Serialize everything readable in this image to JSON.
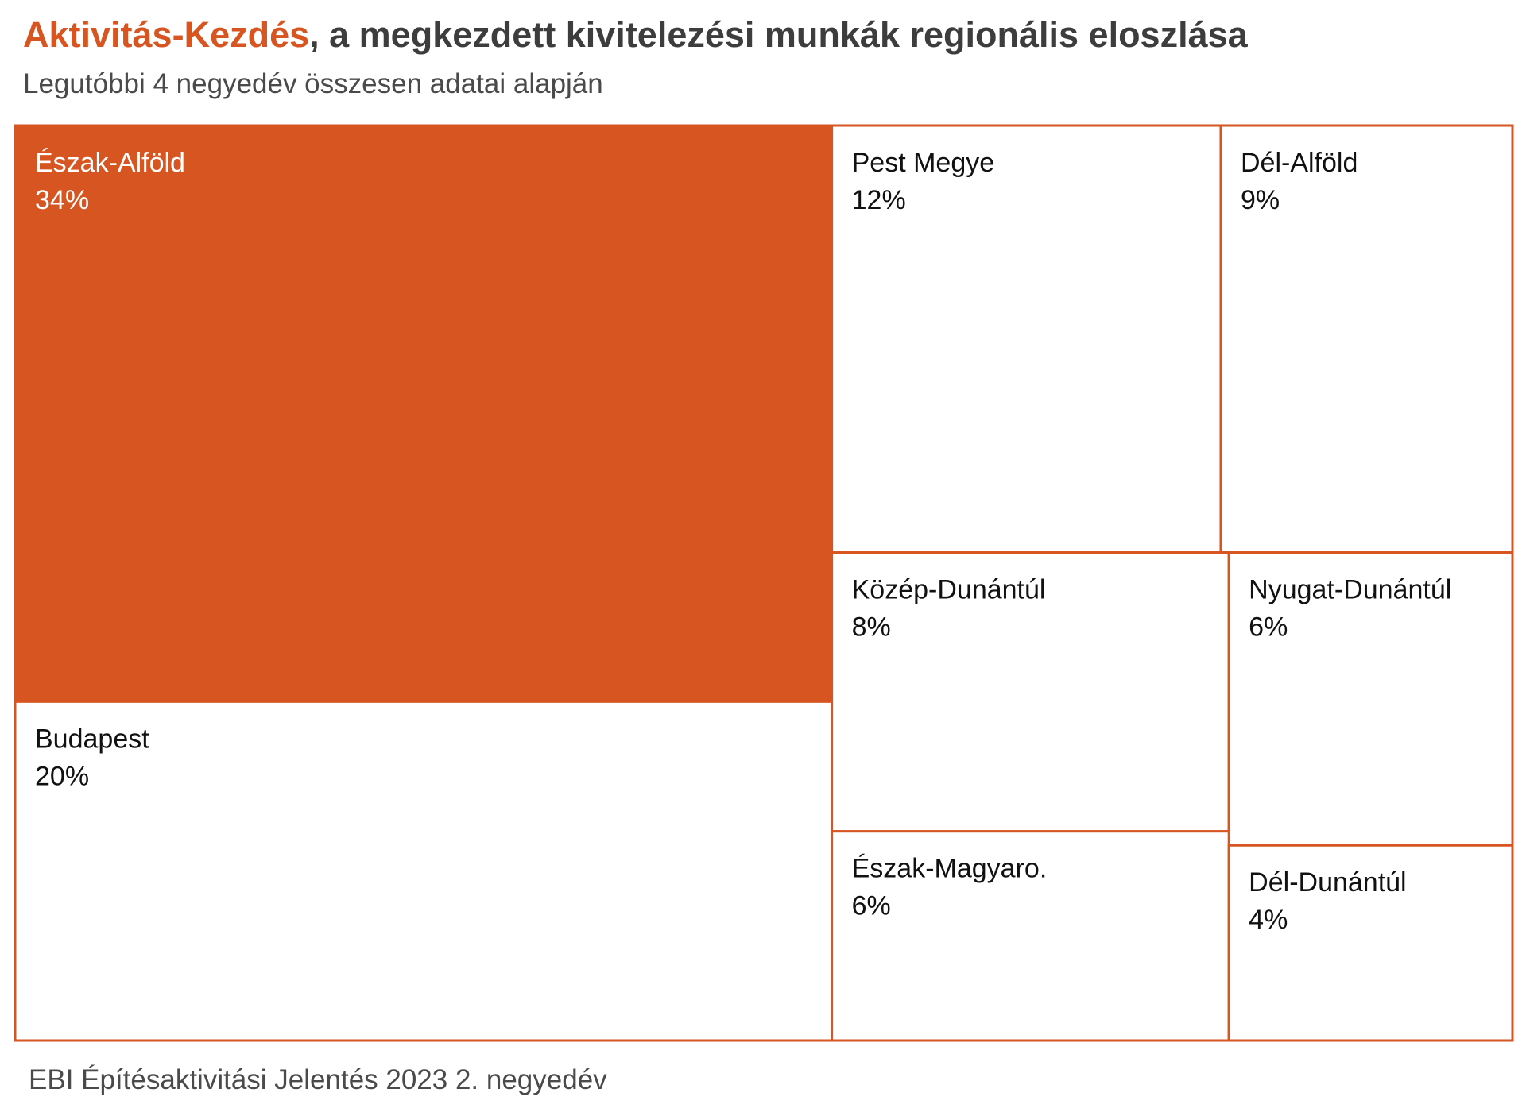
{
  "title": {
    "highlight": "Aktivitás-Kezdés",
    "rest": ", a megkezdett kivitelezési munkák regionális eloszlása"
  },
  "subtitle": "Legutóbbi 4 negyedév összesen adatai alapján",
  "source": "EBI Építésaktivitási Jelentés 2023 2. negyedév",
  "colors": {
    "accent": "#d65521",
    "border": "#d65521",
    "text_dark": "#111111",
    "text_light": "#ffffff",
    "background": "#ffffff"
  },
  "chart_data": {
    "type": "treemap",
    "title": "Aktivitás-Kezdés, a megkezdett kivitelezési munkák regionális eloszlása",
    "subtitle": "Legutóbbi 4 negyedév összesen adatai alapján",
    "unit": "%",
    "items": [
      {
        "name": "Észak-Alföld",
        "value": 34,
        "label": "34%",
        "highlight": true
      },
      {
        "name": "Budapest",
        "value": 20,
        "label": "20%",
        "highlight": false
      },
      {
        "name": "Pest Megye",
        "value": 12,
        "label": "12%",
        "highlight": false
      },
      {
        "name": "Dél-Alföld",
        "value": 9,
        "label": "9%",
        "highlight": false
      },
      {
        "name": "Közép-Dunántúl",
        "value": 8,
        "label": "8%",
        "highlight": false
      },
      {
        "name": "Nyugat-Dunántúl",
        "value": 6,
        "label": "6%",
        "highlight": false
      },
      {
        "name": "Észak-Magyaro.",
        "value": 6,
        "label": "6%",
        "highlight": false
      },
      {
        "name": "Dél-Dunántúl",
        "value": 4,
        "label": "4%",
        "highlight": false
      }
    ]
  }
}
